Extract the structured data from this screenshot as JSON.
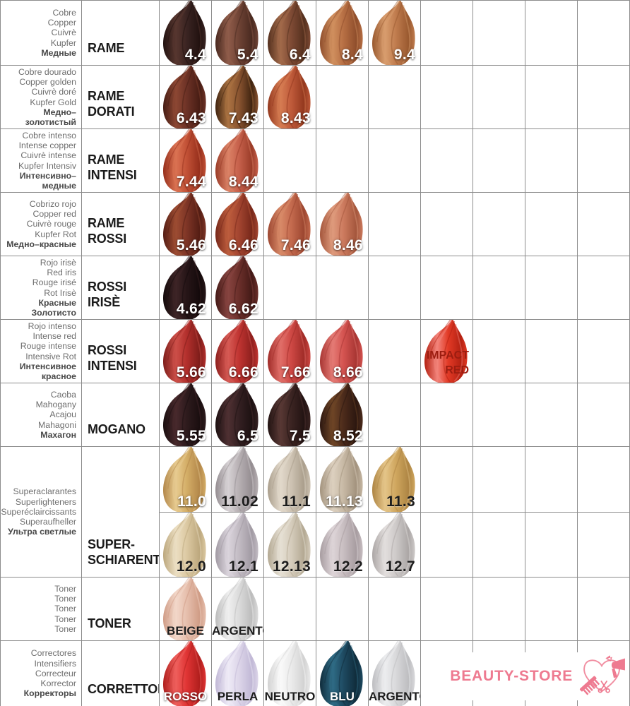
{
  "palette": {
    "grid_line": "#8c8c8c",
    "translation_text": "#6e6e6e",
    "translation_text_bold": "#474747",
    "category_text": "#1b1b1b",
    "shade_code_light": "#ffffff",
    "shade_code_dark": "#1c1c1c",
    "impact_red_text": "#9c1d10",
    "logo_pink": "#ee7a90"
  },
  "logo": {
    "text": "BEAUTY-STORE",
    "color": "#ee7a90"
  },
  "chart_data": {
    "type": "table",
    "columns": 9,
    "rows": [
      {
        "category": "RAME",
        "translations": [
          "Cobre",
          "Copper",
          "Cuivrè",
          "Kupfer",
          "Медные"
        ],
        "bold_last": 1,
        "shades": [
          {
            "code": "4.4",
            "col": 0,
            "text": "light",
            "base": "#3a2422",
            "hi": "#57362f",
            "dark": "#221210"
          },
          {
            "code": "5.4",
            "col": 1,
            "text": "light",
            "base": "#6f4335",
            "hi": "#8f5c4a",
            "dark": "#4a2a20"
          },
          {
            "code": "6.4",
            "col": 2,
            "text": "light",
            "base": "#7e4a34",
            "hi": "#a26a4a",
            "dark": "#54301e"
          },
          {
            "code": "8.4",
            "col": 3,
            "text": "light",
            "base": "#b76f44",
            "hi": "#d08f5e",
            "dark": "#8f4e2c"
          },
          {
            "code": "9.4",
            "col": 4,
            "text": "light",
            "base": "#c07c4e",
            "hi": "#d89d6e",
            "dark": "#99592f"
          }
        ]
      },
      {
        "category": "RAME\nDORATI",
        "translations": [
          "Cobre dourado",
          "Copper golden",
          "Cuivrè doré",
          "Kupfer Gold",
          "Медно–",
          "золотистый"
        ],
        "bold_last": 2,
        "shades": [
          {
            "code": "6.43",
            "col": 0,
            "text": "light",
            "base": "#6d3226",
            "hi": "#8c4733",
            "dark": "#471d14"
          },
          {
            "code": "7.43",
            "col": 1,
            "text": "light",
            "base": "#8a5430",
            "hi": "#ab7342",
            "dark": "#402410"
          },
          {
            "code": "8.43",
            "col": 2,
            "text": "light",
            "base": "#bf5a3a",
            "hi": "#d67c52",
            "dark": "#93381e"
          }
        ]
      },
      {
        "category": "RAME\nINTENSI",
        "translations": [
          "Cobre intenso",
          "Intense copper",
          "Cuivrè intense",
          "Kupfer Intensiv",
          "Интенсивно–",
          "медные"
        ],
        "bold_last": 2,
        "shades": [
          {
            "code": "7.44",
            "col": 0,
            "text": "light",
            "base": "#c25136",
            "hi": "#da7252",
            "dark": "#962f1c"
          },
          {
            "code": "8.44",
            "col": 1,
            "text": "light",
            "base": "#c6604b",
            "hi": "#db8266",
            "dark": "#9a3c28"
          }
        ]
      },
      {
        "category": "RAME\nROSSI",
        "translations": [
          "Cobrizo rojo",
          "Copper red",
          "Cuivrè rouge",
          "Kupfer Rot",
          "Медно–красные"
        ],
        "bold_last": 1,
        "shades": [
          {
            "code": "5.46",
            "col": 0,
            "text": "light",
            "base": "#7e3526",
            "hi": "#9c4c32",
            "dark": "#541d14"
          },
          {
            "code": "6.46",
            "col": 1,
            "text": "light",
            "base": "#a34530",
            "hi": "#bd5d3d",
            "dark": "#77281a"
          },
          {
            "code": "7.46",
            "col": 2,
            "text": "light",
            "base": "#c46a4e",
            "hi": "#d88a68",
            "dark": "#9c4630"
          },
          {
            "code": "8.46",
            "col": 3,
            "text": "light",
            "base": "#cc7a5e",
            "hi": "#de9a7c",
            "dark": "#a4563c"
          }
        ]
      },
      {
        "category": "ROSSI\nIRISÈ",
        "translations": [
          "Rojo irisè",
          "Red iris",
          "Rouge irisé",
          "Rot Irisè",
          "Красные",
          "Золотисто"
        ],
        "bold_last": 2,
        "shades": [
          {
            "code": "4.62",
            "col": 0,
            "text": "light",
            "base": "#261517",
            "hi": "#3e2426",
            "dark": "#140a0b"
          },
          {
            "code": "6.62",
            "col": 1,
            "text": "light",
            "base": "#6b2f2a",
            "hi": "#874440",
            "dark": "#441a17"
          }
        ]
      },
      {
        "category": "ROSSI\nINTENSI",
        "translations": [
          "Rojo intenso",
          "Intense red",
          "Rouge intense",
          "Intensive Rot",
          "Интенсивное",
          "красное"
        ],
        "bold_last": 2,
        "shades": [
          {
            "code": "5.66",
            "col": 0,
            "text": "light",
            "base": "#b32f2c",
            "hi": "#cc4f48",
            "dark": "#7e1d1a"
          },
          {
            "code": "6.66",
            "col": 1,
            "text": "light",
            "base": "#c03431",
            "hi": "#d65a54",
            "dark": "#8e201e"
          },
          {
            "code": "7.66",
            "col": 2,
            "text": "light",
            "base": "#ce4844",
            "hi": "#e06e68",
            "dark": "#a02c28"
          },
          {
            "code": "8.66",
            "col": 3,
            "text": "light",
            "base": "#d45350",
            "hi": "#e47a74",
            "dark": "#a83633"
          },
          {
            "code": "IMPACT RED",
            "col": 5,
            "text": "impact",
            "base": "#e23a26",
            "hi": "#f2837a",
            "dark": "#b42112"
          }
        ]
      },
      {
        "category": "MOGANO",
        "translations": [
          "Caoba",
          "Mahogany",
          "Acajou",
          "Mahagoni",
          "Махагон"
        ],
        "bold_last": 1,
        "shades": [
          {
            "code": "5.55",
            "col": 0,
            "text": "light",
            "base": "#2e1b1d",
            "hi": "#48292c",
            "dark": "#1a0e0f"
          },
          {
            "code": "6.5",
            "col": 1,
            "text": "light",
            "base": "#342022",
            "hi": "#4e3032",
            "dark": "#1d1112"
          },
          {
            "code": "7.5",
            "col": 2,
            "text": "light",
            "base": "#3b2422",
            "hi": "#583834",
            "dark": "#221312"
          },
          {
            "code": "8.52",
            "col": 3,
            "text": "light",
            "base": "#4c2b1b",
            "hi": "#6e4526",
            "dark": "#2c1710"
          }
        ]
      },
      {
        "category": "SUPER-\nSCHIARENTI",
        "translations": [
          "Superaclarantes",
          "Superlighteners",
          "Superéclaircissants",
          "Superaufheller",
          "Ультра светлые"
        ],
        "bold_last": 1,
        "shades": [
          {
            "code": "11.0",
            "col": 0,
            "text": "light",
            "base": "#d4ae67",
            "hi": "#e7cb90",
            "dark": "#b3874a"
          },
          {
            "code": "11.02",
            "col": 1,
            "text": "dark",
            "base": "#b7b0b3",
            "hi": "#d6d1d4",
            "dark": "#948d91"
          },
          {
            "code": "11.1",
            "col": 2,
            "text": "dark",
            "base": "#cdc2b2",
            "hi": "#e2d9cb",
            "dark": "#aa9e8c"
          },
          {
            "code": "11.13",
            "col": 3,
            "text": "light",
            "base": "#c7b9a5",
            "hi": "#dcd0bf",
            "dark": "#a3937e"
          },
          {
            "code": "11.3",
            "col": 4,
            "text": "dark",
            "base": "#d0a75f",
            "hi": "#e4c488",
            "dark": "#ad8443"
          }
        ],
        "shades2": [
          {
            "code": "12.0",
            "col": 0,
            "text": "dark",
            "base": "#dcc9a2",
            "hi": "#ebdec2",
            "dark": "#bca77d"
          },
          {
            "code": "12.1",
            "col": 1,
            "text": "dark",
            "base": "#c2bbc3",
            "hi": "#dad4dc",
            "dark": "#a19aa3"
          },
          {
            "code": "12.13",
            "col": 2,
            "text": "dark",
            "base": "#d5ccbc",
            "hi": "#e6e0d4",
            "dark": "#b3a892"
          },
          {
            "code": "12.2",
            "col": 3,
            "text": "dark",
            "base": "#c8bec1",
            "hi": "#ddd4d7",
            "dark": "#a79ca0"
          },
          {
            "code": "12.7",
            "col": 4,
            "text": "dark",
            "base": "#cecac9",
            "hi": "#e2dedd",
            "dark": "#aba6a5"
          }
        ]
      },
      {
        "category": "TONER",
        "translations": [
          "Toner",
          "Toner",
          "Toner",
          "Toner",
          "Toner"
        ],
        "bold_last": 0,
        "shades": [
          {
            "code": "BEIGE",
            "col": 0,
            "text": "dark",
            "base": "#e6bfad",
            "hi": "#f2d7c9",
            "dark": "#d09c86"
          },
          {
            "code": "ARGENTO",
            "col": 1,
            "text": "dark",
            "base": "#dbdbdb",
            "hi": "#efefef",
            "dark": "#bcbcbc"
          }
        ]
      },
      {
        "category": "CORRETTORI",
        "translations": [
          "Correctores",
          "Intensifiers",
          "Correcteur",
          "Korrector",
          "Корректоры"
        ],
        "bold_last": 1,
        "shades": [
          {
            "code": "ROSSO",
            "col": 0,
            "text": "light",
            "base": "#e03434",
            "hi": "#ee5f5c",
            "dark": "#b01f1d"
          },
          {
            "code": "PERLA",
            "col": 1,
            "text": "dark",
            "base": "#ddd6e9",
            "hi": "#eeeaf6",
            "dark": "#c1b8d6"
          },
          {
            "code": "NEUTRO",
            "col": 2,
            "text": "dark",
            "base": "#ebebeb",
            "hi": "#f9f9f9",
            "dark": "#d2d2d2"
          },
          {
            "code": "BLU",
            "col": 3,
            "text": "light",
            "base": "#1e4a61",
            "hi": "#2f6b85",
            "dark": "#102c3b"
          },
          {
            "code": "ARGENTO",
            "col": 4,
            "text": "dark",
            "base": "#d9d9db",
            "hi": "#ecedef",
            "dark": "#bdbdc0"
          }
        ]
      }
    ]
  }
}
